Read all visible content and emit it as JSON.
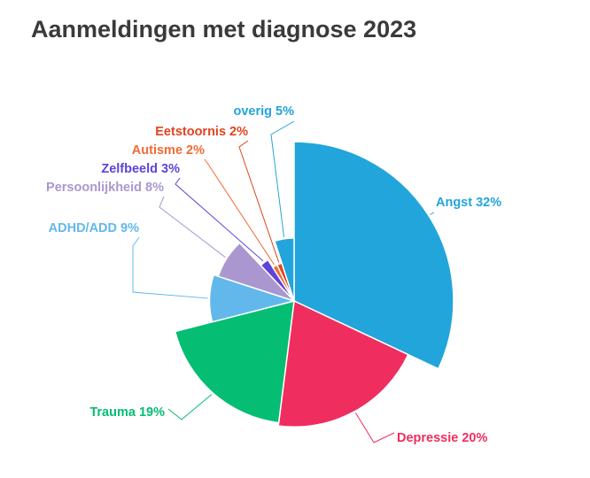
{
  "chart_data": {
    "type": "pie",
    "title": "Aanmeldingen met diagnose 2023",
    "slices": [
      {
        "name": "Angst",
        "value": 32,
        "label": "Angst 32%",
        "color": "#22a5db"
      },
      {
        "name": "Depressie",
        "value": 20,
        "label": "Depressie 20%",
        "color": "#ef2d5e"
      },
      {
        "name": "Trauma",
        "value": 19,
        "label": "Trauma 19%",
        "color": "#05bd73"
      },
      {
        "name": "ADHD/ADD",
        "value": 9,
        "label": "ADHD/ADD 9%",
        "color": "#62b8ea"
      },
      {
        "name": "Persoonlijkheid",
        "value": 8,
        "label": "Persoonlijkheid 8%",
        "color": "#ab97cf"
      },
      {
        "name": "Zelfbeeld",
        "value": 3,
        "label": "Zelfbeeld 3%",
        "color": "#5d43d9"
      },
      {
        "name": "Autisme",
        "value": 2,
        "label": "Autisme 2%",
        "color": "#f26a35"
      },
      {
        "name": "Eetstoornis",
        "value": 2,
        "label": "Eetstoornis 2%",
        "color": "#e0441f"
      },
      {
        "name": "overig",
        "value": 5,
        "label": "overig 5%",
        "color": "#22a5db"
      }
    ]
  }
}
